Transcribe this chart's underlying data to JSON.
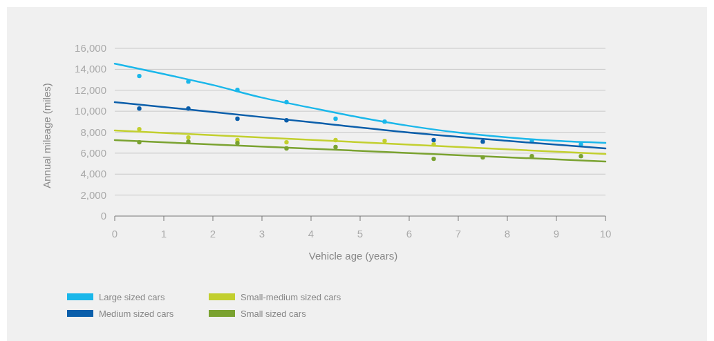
{
  "chart_data": {
    "type": "scatter",
    "xlabel": "Vehicle age (years)",
    "ylabel": "Annual mileage (miles)",
    "x": [
      0.5,
      1.5,
      2.5,
      3.5,
      4.5,
      5.5,
      6.5,
      7.5,
      8.5,
      9.5
    ],
    "xlim": [
      0,
      10
    ],
    "xticks": [
      0,
      1,
      2,
      3,
      4,
      5,
      6,
      7,
      8,
      9,
      10
    ],
    "ylim": [
      0,
      16000
    ],
    "yticks": [
      {
        "value": 0,
        "label": "0"
      },
      {
        "value": 2000,
        "label": "2,000"
      },
      {
        "value": 4000,
        "label": "4,000"
      },
      {
        "value": 6000,
        "label": "6,000"
      },
      {
        "value": 8000,
        "label": "8,000"
      },
      {
        "value": 10000,
        "label": "10,000"
      },
      {
        "value": 12000,
        "label": "12,000"
      },
      {
        "value": 14000,
        "label": "14,000"
      },
      {
        "value": 16000,
        "label": "16,000"
      }
    ],
    "grid": "y",
    "legend": "bottom",
    "marker": "circle",
    "series": [
      {
        "name": "Large sized cars",
        "color": "#1ab7ea",
        "values": [
          13360,
          12830,
          12040,
          10860,
          9280,
          9010,
          null,
          null,
          7170,
          6840
        ]
      },
      {
        "name": "Medium sized cars",
        "color": "#0a5eaa",
        "values": [
          10260,
          10260,
          9280,
          9140,
          null,
          null,
          7240,
          7100,
          null,
          null
        ]
      },
      {
        "name": "Small-medium sized cars",
        "color": "#c2cf2e",
        "values": [
          8290,
          7500,
          7240,
          7040,
          7240,
          7170,
          6840,
          null,
          null,
          null
        ]
      },
      {
        "name": "Small sized cars",
        "color": "#7aa230",
        "values": [
          7040,
          7100,
          6970,
          6450,
          6580,
          null,
          5460,
          5590,
          5720,
          5720
        ]
      },
      {
        "type": "line",
        "marker": "none",
        "color": "#1ab7ea",
        "x": [
          0,
          1,
          2,
          3,
          4,
          5,
          6,
          7,
          8,
          9,
          10
        ],
        "values": [
          14540,
          13550,
          12500,
          11300,
          10330,
          9400,
          8600,
          7960,
          7500,
          7170,
          6980
        ]
      },
      {
        "type": "line",
        "marker": "none",
        "color": "#0a5eaa",
        "x": [
          0,
          2,
          4,
          6,
          8,
          10
        ],
        "values": [
          10860,
          9930,
          8950,
          7960,
          7170,
          6450
        ]
      },
      {
        "type": "line",
        "marker": "none",
        "color": "#c2cf2e",
        "x": [
          0,
          10
        ],
        "values": [
          8160,
          5920
        ]
      },
      {
        "type": "line",
        "marker": "none",
        "color": "#7aa230",
        "x": [
          0,
          10
        ],
        "values": [
          7240,
          5200
        ]
      }
    ]
  }
}
